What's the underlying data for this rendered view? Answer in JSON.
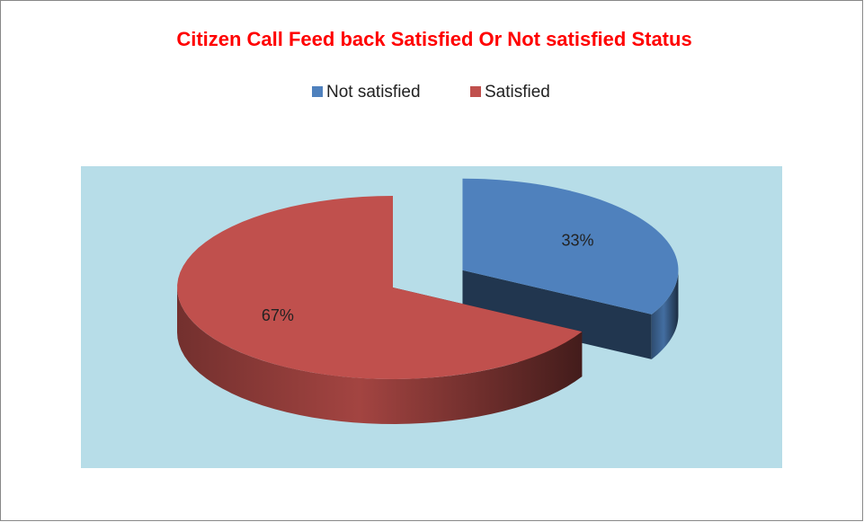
{
  "chart_data": {
    "type": "pie",
    "title": "Citizen Call  Feed back Satisfied Or Not satisfied Status",
    "categories": [
      "Not satisfied",
      "Satisfied"
    ],
    "values": [
      33,
      67
    ],
    "value_labels": [
      "33%",
      "67%"
    ],
    "colors": [
      "#4f81bd",
      "#c0504d"
    ],
    "legend": "top",
    "exploded": [
      true,
      false
    ]
  }
}
